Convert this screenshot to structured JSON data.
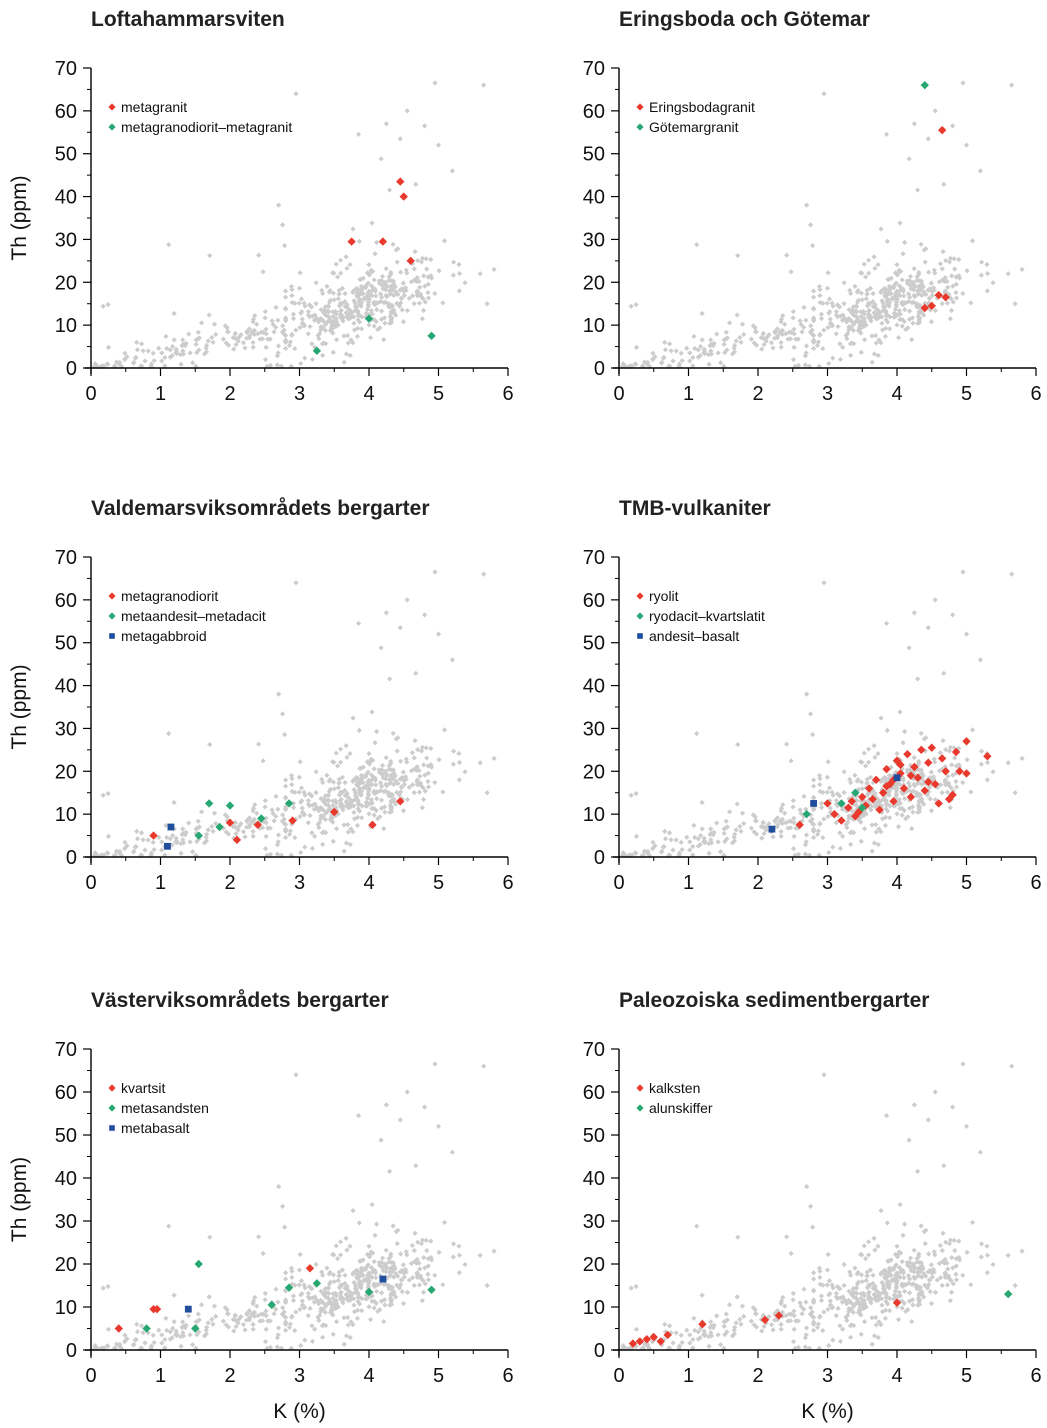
{
  "colors": {
    "background_points": "#cccccc",
    "red": "#e8392c",
    "green": "#27a872",
    "blue": "#1f4e9c",
    "axis": "#000000"
  },
  "chart_data": [
    {
      "type": "scatter",
      "title": "Loftahammarsviten",
      "xlabel": "",
      "ylabel": "Th (ppm)",
      "xlim": [
        0,
        6
      ],
      "ylim": [
        0,
        70
      ],
      "xticks": [
        "0",
        "1",
        "2",
        "3",
        "4",
        "5",
        "6"
      ],
      "yticks": [
        "0",
        "10",
        "20",
        "30",
        "40",
        "50",
        "60",
        "70"
      ],
      "legend_position": "top-left",
      "series": [
        {
          "name": "metagranit",
          "color": "#e8392c",
          "marker": "diamond",
          "points": [
            [
              3.75,
              29.5
            ],
            [
              4.2,
              29.5
            ],
            [
              4.45,
              43.5
            ],
            [
              4.5,
              40.0
            ],
            [
              4.6,
              25.0
            ]
          ]
        },
        {
          "name": "metagranodiorit–metagranit",
          "color": "#27a872",
          "marker": "diamond",
          "points": [
            [
              3.25,
              4.0
            ],
            [
              4.0,
              11.5
            ],
            [
              4.9,
              7.5
            ]
          ]
        }
      ]
    },
    {
      "type": "scatter",
      "title": "Eringsboda och Götemar",
      "xlabel": "",
      "ylabel": "",
      "xlim": [
        0,
        6
      ],
      "ylim": [
        0,
        70
      ],
      "xticks": [
        "0",
        "1",
        "2",
        "3",
        "4",
        "5",
        "6"
      ],
      "yticks": [
        "0",
        "10",
        "20",
        "30",
        "40",
        "50",
        "60",
        "70"
      ],
      "legend_position": "top-left",
      "series": [
        {
          "name": "Eringsbodagranit",
          "color": "#e8392c",
          "marker": "diamond",
          "points": [
            [
              4.4,
              14.0
            ],
            [
              4.5,
              14.5
            ],
            [
              4.6,
              17.0
            ],
            [
              4.7,
              16.5
            ],
            [
              4.65,
              55.5
            ]
          ]
        },
        {
          "name": "Götemargranit",
          "color": "#27a872",
          "marker": "diamond",
          "points": [
            [
              4.4,
              66.0
            ]
          ]
        }
      ]
    },
    {
      "type": "scatter",
      "title": "Valdemarsviksområdets bergarter",
      "xlabel": "",
      "ylabel": "Th (ppm)",
      "xlim": [
        0,
        6
      ],
      "ylim": [
        0,
        70
      ],
      "xticks": [
        "0",
        "1",
        "2",
        "3",
        "4",
        "5",
        "6"
      ],
      "yticks": [
        "0",
        "10",
        "20",
        "30",
        "40",
        "50",
        "60",
        "70"
      ],
      "legend_position": "top-left",
      "series": [
        {
          "name": "metagranodiorit",
          "color": "#e8392c",
          "marker": "diamond",
          "points": [
            [
              0.9,
              5.0
            ],
            [
              2.0,
              8.0
            ],
            [
              2.1,
              4.0
            ],
            [
              2.4,
              7.5
            ],
            [
              2.9,
              8.5
            ],
            [
              3.5,
              10.5
            ],
            [
              4.05,
              7.5
            ],
            [
              4.45,
              13.0
            ]
          ]
        },
        {
          "name": "metaandesit–metadacit",
          "color": "#27a872",
          "marker": "diamond",
          "points": [
            [
              1.55,
              5.0
            ],
            [
              1.7,
              12.5
            ],
            [
              1.85,
              7.0
            ],
            [
              2.0,
              12.0
            ],
            [
              2.45,
              9.0
            ],
            [
              2.85,
              12.5
            ]
          ]
        },
        {
          "name": "metagabbroid",
          "color": "#1f4e9c",
          "marker": "square",
          "points": [
            [
              1.1,
              2.5
            ],
            [
              1.15,
              7.0
            ]
          ]
        }
      ]
    },
    {
      "type": "scatter",
      "title": "TMB-vulkaniter",
      "xlabel": "",
      "ylabel": "",
      "xlim": [
        0,
        6
      ],
      "ylim": [
        0,
        70
      ],
      "xticks": [
        "0",
        "1",
        "2",
        "3",
        "4",
        "5",
        "6"
      ],
      "yticks": [
        "0",
        "10",
        "20",
        "30",
        "40",
        "50",
        "60",
        "70"
      ],
      "legend_position": "top-left",
      "series": [
        {
          "name": "ryolit",
          "color": "#e8392c",
          "marker": "diamond",
          "points": [
            [
              2.6,
              7.5
            ],
            [
              3.0,
              12.5
            ],
            [
              3.1,
              10.0
            ],
            [
              3.2,
              8.5
            ],
            [
              3.3,
              11.5
            ],
            [
              3.35,
              13.0
            ],
            [
              3.4,
              9.5
            ],
            [
              3.45,
              10.5
            ],
            [
              3.5,
              14.0
            ],
            [
              3.55,
              12.0
            ],
            [
              3.6,
              16.0
            ],
            [
              3.65,
              13.5
            ],
            [
              3.7,
              18.0
            ],
            [
              3.75,
              11.0
            ],
            [
              3.8,
              15.0
            ],
            [
              3.85,
              20.5
            ],
            [
              3.9,
              17.0
            ],
            [
              3.95,
              13.0
            ],
            [
              4.0,
              22.5
            ],
            [
              4.05,
              19.5
            ],
            [
              4.1,
              16.0
            ],
            [
              4.15,
              24.0
            ],
            [
              4.2,
              14.0
            ],
            [
              4.25,
              21.0
            ],
            [
              4.3,
              18.5
            ],
            [
              4.35,
              25.0
            ],
            [
              4.4,
              15.5
            ],
            [
              4.45,
              22.0
            ],
            [
              4.5,
              25.5
            ],
            [
              4.55,
              17.0
            ],
            [
              4.6,
              12.5
            ],
            [
              4.65,
              23.0
            ],
            [
              4.7,
              20.0
            ],
            [
              4.75,
              13.5
            ],
            [
              4.85,
              24.5
            ],
            [
              4.9,
              20.0
            ],
            [
              5.0,
              27.0
            ],
            [
              5.0,
              19.5
            ],
            [
              5.3,
              23.5
            ],
            [
              3.95,
              18.0
            ],
            [
              4.05,
              21.5
            ],
            [
              3.85,
              16.5
            ],
            [
              4.2,
              19.0
            ],
            [
              4.45,
              17.5
            ],
            [
              4.8,
              14.5
            ]
          ]
        },
        {
          "name": "ryodacit–kvartslatit",
          "color": "#27a872",
          "marker": "diamond",
          "points": [
            [
              2.7,
              10.0
            ],
            [
              3.2,
              12.5
            ],
            [
              3.4,
              15.0
            ],
            [
              3.5,
              11.5
            ]
          ]
        },
        {
          "name": "andesit–basalt",
          "color": "#1f4e9c",
          "marker": "square",
          "points": [
            [
              2.2,
              6.5
            ],
            [
              2.8,
              12.5
            ],
            [
              4.0,
              18.5
            ]
          ]
        }
      ]
    },
    {
      "type": "scatter",
      "title": "Västerviksområdets bergarter",
      "xlabel": "K (%)",
      "ylabel": "Th (ppm)",
      "xlim": [
        0,
        6
      ],
      "ylim": [
        0,
        70
      ],
      "xticks": [
        "0",
        "1",
        "2",
        "3",
        "4",
        "5",
        "6"
      ],
      "yticks": [
        "0",
        "10",
        "20",
        "30",
        "40",
        "50",
        "60",
        "70"
      ],
      "legend_position": "top-left",
      "series": [
        {
          "name": "kvartsit",
          "color": "#e8392c",
          "marker": "diamond",
          "points": [
            [
              0.4,
              5.0
            ],
            [
              0.9,
              9.5
            ],
            [
              0.95,
              9.5
            ],
            [
              3.15,
              19.0
            ]
          ]
        },
        {
          "name": "metasandsten",
          "color": "#27a872",
          "marker": "diamond",
          "points": [
            [
              0.8,
              5.0
            ],
            [
              1.5,
              5.0
            ],
            [
              1.55,
              20.0
            ],
            [
              2.6,
              10.5
            ],
            [
              2.85,
              14.5
            ],
            [
              3.25,
              15.5
            ],
            [
              4.0,
              13.5
            ],
            [
              4.9,
              14.0
            ]
          ]
        },
        {
          "name": "metabasalt",
          "color": "#1f4e9c",
          "marker": "square",
          "points": [
            [
              1.4,
              9.5
            ],
            [
              4.2,
              16.5
            ]
          ]
        }
      ]
    },
    {
      "type": "scatter",
      "title": "Paleozoiska sedimentbergarter",
      "xlabel": "K (%)",
      "ylabel": "",
      "xlim": [
        0,
        6
      ],
      "ylim": [
        0,
        70
      ],
      "xticks": [
        "0",
        "1",
        "2",
        "3",
        "4",
        "5",
        "6"
      ],
      "yticks": [
        "0",
        "10",
        "20",
        "30",
        "40",
        "50",
        "60",
        "70"
      ],
      "legend_position": "top-left",
      "series": [
        {
          "name": "kalksten",
          "color": "#e8392c",
          "marker": "diamond",
          "points": [
            [
              0.2,
              1.5
            ],
            [
              0.3,
              2.0
            ],
            [
              0.4,
              2.5
            ],
            [
              0.5,
              3.0
            ],
            [
              0.6,
              2.0
            ],
            [
              0.7,
              3.5
            ],
            [
              1.2,
              6.0
            ],
            [
              2.1,
              7.0
            ],
            [
              2.3,
              8.0
            ],
            [
              4.0,
              11.0
            ]
          ]
        },
        {
          "name": "alunskiffer",
          "color": "#27a872",
          "marker": "diamond",
          "points": [
            [
              5.6,
              13.0
            ]
          ]
        }
      ]
    }
  ]
}
